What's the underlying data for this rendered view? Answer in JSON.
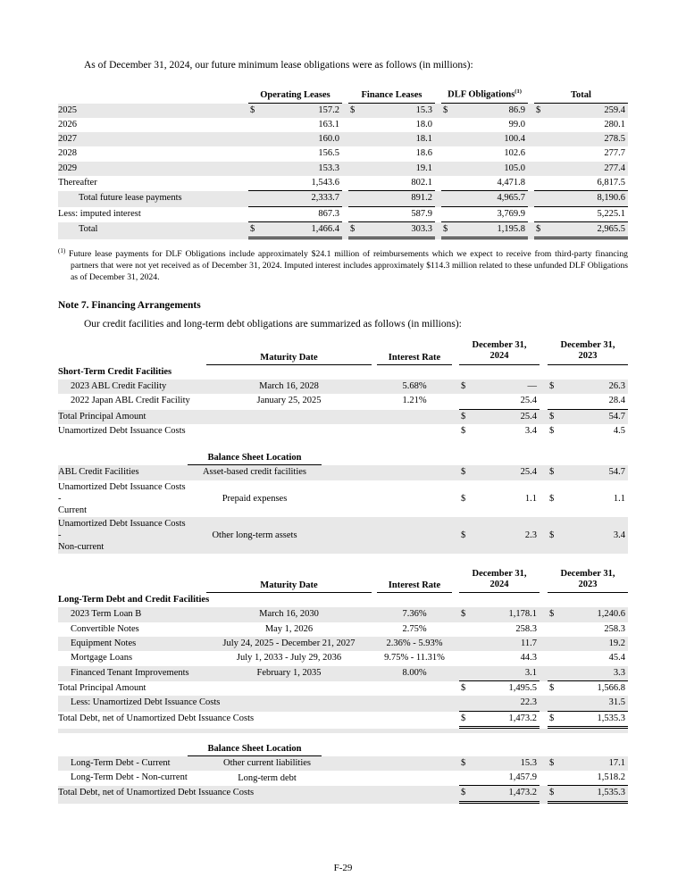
{
  "colors": {
    "row_shade": "#e8e8e8",
    "text": "#000000",
    "background": "#ffffff"
  },
  "page": {
    "intro_lease": "As of December 31, 2024, our future minimum lease obligations were as follows (in millions):",
    "note_heading": "Note 7. Financing Arrangements",
    "intro_financing": "Our credit facilities and long-term debt obligations are summarized as follows (in millions):",
    "footnote_marker": "(1)",
    "footnote_text": "Future lease payments for DLF Obligations include approximately $24.1 million of reimbursements which we expect to receive from third-party financing partners that were not yet received as of December 31, 2024. Imputed interest includes approximately $114.3 million related to these unfunded DLF Obligations as of December 31, 2024.",
    "page_number": "F-29"
  },
  "lease_table": {
    "columns": [
      "Operating Leases",
      "Finance Leases",
      "DLF Obligations",
      "Total"
    ],
    "dlf_superscript": "(1)",
    "rows": [
      {
        "label": "2025",
        "dollar": true,
        "values": [
          "157.2",
          "15.3",
          "86.9",
          "259.4"
        ],
        "shade": true
      },
      {
        "label": "2026",
        "values": [
          "163.1",
          "18.0",
          "99.0",
          "280.1"
        ]
      },
      {
        "label": "2027",
        "values": [
          "160.0",
          "18.1",
          "100.4",
          "278.5"
        ],
        "shade": true
      },
      {
        "label": "2028",
        "values": [
          "156.5",
          "18.6",
          "102.6",
          "277.7"
        ]
      },
      {
        "label": "2029",
        "values": [
          "153.3",
          "19.1",
          "105.0",
          "277.4"
        ],
        "shade": true
      },
      {
        "label": "Thereafter",
        "values": [
          "1,543.6",
          "802.1",
          "4,471.8",
          "6,817.5"
        ],
        "rule": "single"
      },
      {
        "label": "Total future lease payments",
        "indent": 1,
        "values": [
          "2,333.7",
          "891.2",
          "4,965.7",
          "8,190.6"
        ],
        "shade": true,
        "rule": "single"
      },
      {
        "label": "Less: imputed interest",
        "values": [
          "867.3",
          "587.9",
          "3,769.9",
          "5,225.1"
        ],
        "rule": "single"
      },
      {
        "label": "Total",
        "indent": 1,
        "dollar": true,
        "values": [
          "1,466.4",
          "303.3",
          "1,195.8",
          "2,965.5"
        ],
        "shade": true,
        "rule": "double"
      }
    ]
  },
  "financing_headers": {
    "maturity": "Maturity Date",
    "interest": "Interest Rate",
    "dec2024": "December 31,\n2024",
    "dec2023": "December 31,\n2023",
    "balance": "Balance Sheet Location"
  },
  "short_term_table": {
    "rows": [
      {
        "type": "section",
        "label": "Short-Term Credit Facilities"
      },
      {
        "label": "2023 ABL Credit Facility",
        "indent": 1,
        "maturity": "March 16, 2028",
        "interest": "5.68%",
        "dollar": true,
        "v2024": "—",
        "v2023": "26.3",
        "shade": true
      },
      {
        "label": "2022 Japan ABL Credit Facility",
        "indent": 1,
        "maturity": "January 25, 2025",
        "interest": "1.21%",
        "v2024": "25.4",
        "v2023": "28.4",
        "rule": "single"
      },
      {
        "label": "Total Principal Amount",
        "dollar": true,
        "v2024": "25.4",
        "v2023": "54.7",
        "shade": true
      },
      {
        "label": "Unamortized Debt Issuance Costs",
        "dollar": true,
        "v2024": "3.4",
        "v2023": "4.5"
      }
    ]
  },
  "short_term_balance_table": {
    "rows": [
      {
        "label": "ABL Credit Facilities",
        "location": "Asset-based credit facilities",
        "dollar": true,
        "v2024": "25.4",
        "v2023": "54.7",
        "shade": true
      },
      {
        "label": "Unamortized Debt Issuance Costs -\nCurrent",
        "location": "Prepaid expenses",
        "dollar": true,
        "v2024": "1.1",
        "v2023": "1.1"
      },
      {
        "label": "Unamortized Debt Issuance Costs -\nNon-current",
        "location": "Other long-term assets",
        "dollar": true,
        "v2024": "2.3",
        "v2023": "3.4",
        "shade": true
      }
    ]
  },
  "long_term_table": {
    "rows": [
      {
        "type": "section",
        "label": "Long-Term Debt and Credit Facilities"
      },
      {
        "label": "2023 Term Loan B",
        "indent": 1,
        "maturity": "March 16, 2030",
        "interest": "7.36%",
        "dollar": true,
        "v2024": "1,178.1",
        "v2023": "1,240.6",
        "shade": true
      },
      {
        "label": "Convertible Notes",
        "indent": 1,
        "maturity": "May 1, 2026",
        "interest": "2.75%",
        "v2024": "258.3",
        "v2023": "258.3"
      },
      {
        "label": "Equipment Notes",
        "indent": 1,
        "maturity": "July 24, 2025 - December 21, 2027",
        "interest": "2.36% - 5.93%",
        "v2024": "11.7",
        "v2023": "19.2",
        "shade": true
      },
      {
        "label": "Mortgage Loans",
        "indent": 1,
        "maturity": "July 1, 2033 - July 29, 2036",
        "interest": "9.75% - 11.31%",
        "v2024": "44.3",
        "v2023": "45.4"
      },
      {
        "label": "Financed Tenant Improvements",
        "indent": 1,
        "maturity": "February 1, 2035",
        "interest": "8.00%",
        "v2024": "3.1",
        "v2023": "3.3",
        "shade": true,
        "rule": "single"
      },
      {
        "label": "Total Principal Amount",
        "dollar": true,
        "v2024": "1,495.5",
        "v2023": "1,566.8"
      },
      {
        "label": "Less: Unamortized Debt Issuance Costs",
        "indent": 1,
        "v2024": "22.3",
        "v2023": "31.5",
        "shade": true,
        "rule": "single"
      },
      {
        "label": "Total Debt, net of Unamortized Debt Issuance Costs",
        "dollar": true,
        "v2024": "1,473.2",
        "v2023": "1,535.3",
        "rule": "double"
      },
      {
        "type": "spacer",
        "shade": true
      }
    ]
  },
  "long_term_balance_table": {
    "rows": [
      {
        "label": "Long-Term Debt - Current",
        "indent": 1,
        "location": "Other current liabilities",
        "dollar": true,
        "v2024": "15.3",
        "v2023": "17.1",
        "shade": true
      },
      {
        "label": "Long-Term Debt - Non-current",
        "indent": 1,
        "location": "Long-term debt",
        "v2024": "1,457.9",
        "v2023": "1,518.2",
        "rule": "single"
      },
      {
        "label": "Total Debt, net of Unamortized Debt Issuance Costs",
        "dollar": true,
        "v2024": "1,473.2",
        "v2023": "1,535.3",
        "shade": true,
        "rule": "double"
      }
    ]
  }
}
